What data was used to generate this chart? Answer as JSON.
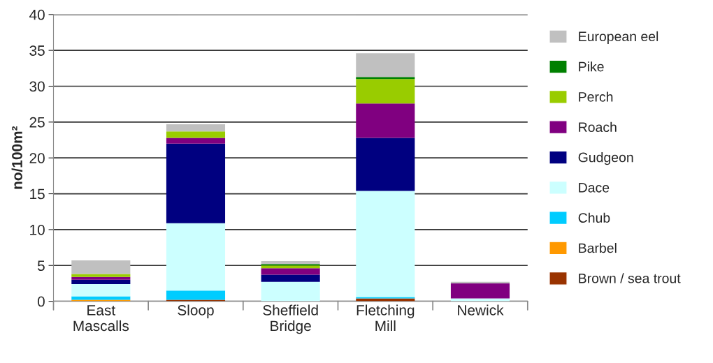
{
  "chart_data": {
    "type": "bar",
    "stacked": true,
    "ylabel": "no/100m²",
    "categories": [
      "East\nMascalls",
      "Sloop",
      "Sheffield\nBridge",
      "Fletching\nMill",
      "Newick"
    ],
    "ylim": [
      0,
      40
    ],
    "yticks": [
      0,
      5,
      10,
      15,
      20,
      25,
      30,
      35,
      40
    ],
    "grid": "y",
    "legend": "right",
    "series": [
      {
        "name": "Brown / sea trout",
        "color": "#993300",
        "values": [
          0,
          0.2,
          0,
          0.4,
          0
        ]
      },
      {
        "name": "Barbel",
        "color": "#ff9900",
        "values": [
          0.2,
          0,
          0,
          0,
          0
        ]
      },
      {
        "name": "Chub",
        "color": "#00ccff",
        "values": [
          0.5,
          1.3,
          0,
          0.2,
          0
        ]
      },
      {
        "name": "Dace",
        "color": "#ccffff",
        "values": [
          1.7,
          9.4,
          2.7,
          14.8,
          0.4
        ]
      },
      {
        "name": "Gudgeon",
        "color": "#000080",
        "values": [
          0.6,
          11.1,
          1.0,
          7.4,
          0
        ]
      },
      {
        "name": "Roach",
        "color": "#800080",
        "values": [
          0.4,
          0.8,
          0.9,
          4.8,
          2.1
        ]
      },
      {
        "name": "Perch",
        "color": "#99cc00",
        "values": [
          0.4,
          0.9,
          0.4,
          3.4,
          0
        ]
      },
      {
        "name": "Pike",
        "color": "#008000",
        "values": [
          0,
          0,
          0.2,
          0.3,
          0
        ]
      },
      {
        "name": "European eel",
        "color": "#c0c0c0",
        "values": [
          1.9,
          1.0,
          0.4,
          3.3,
          0.2
        ]
      }
    ]
  }
}
